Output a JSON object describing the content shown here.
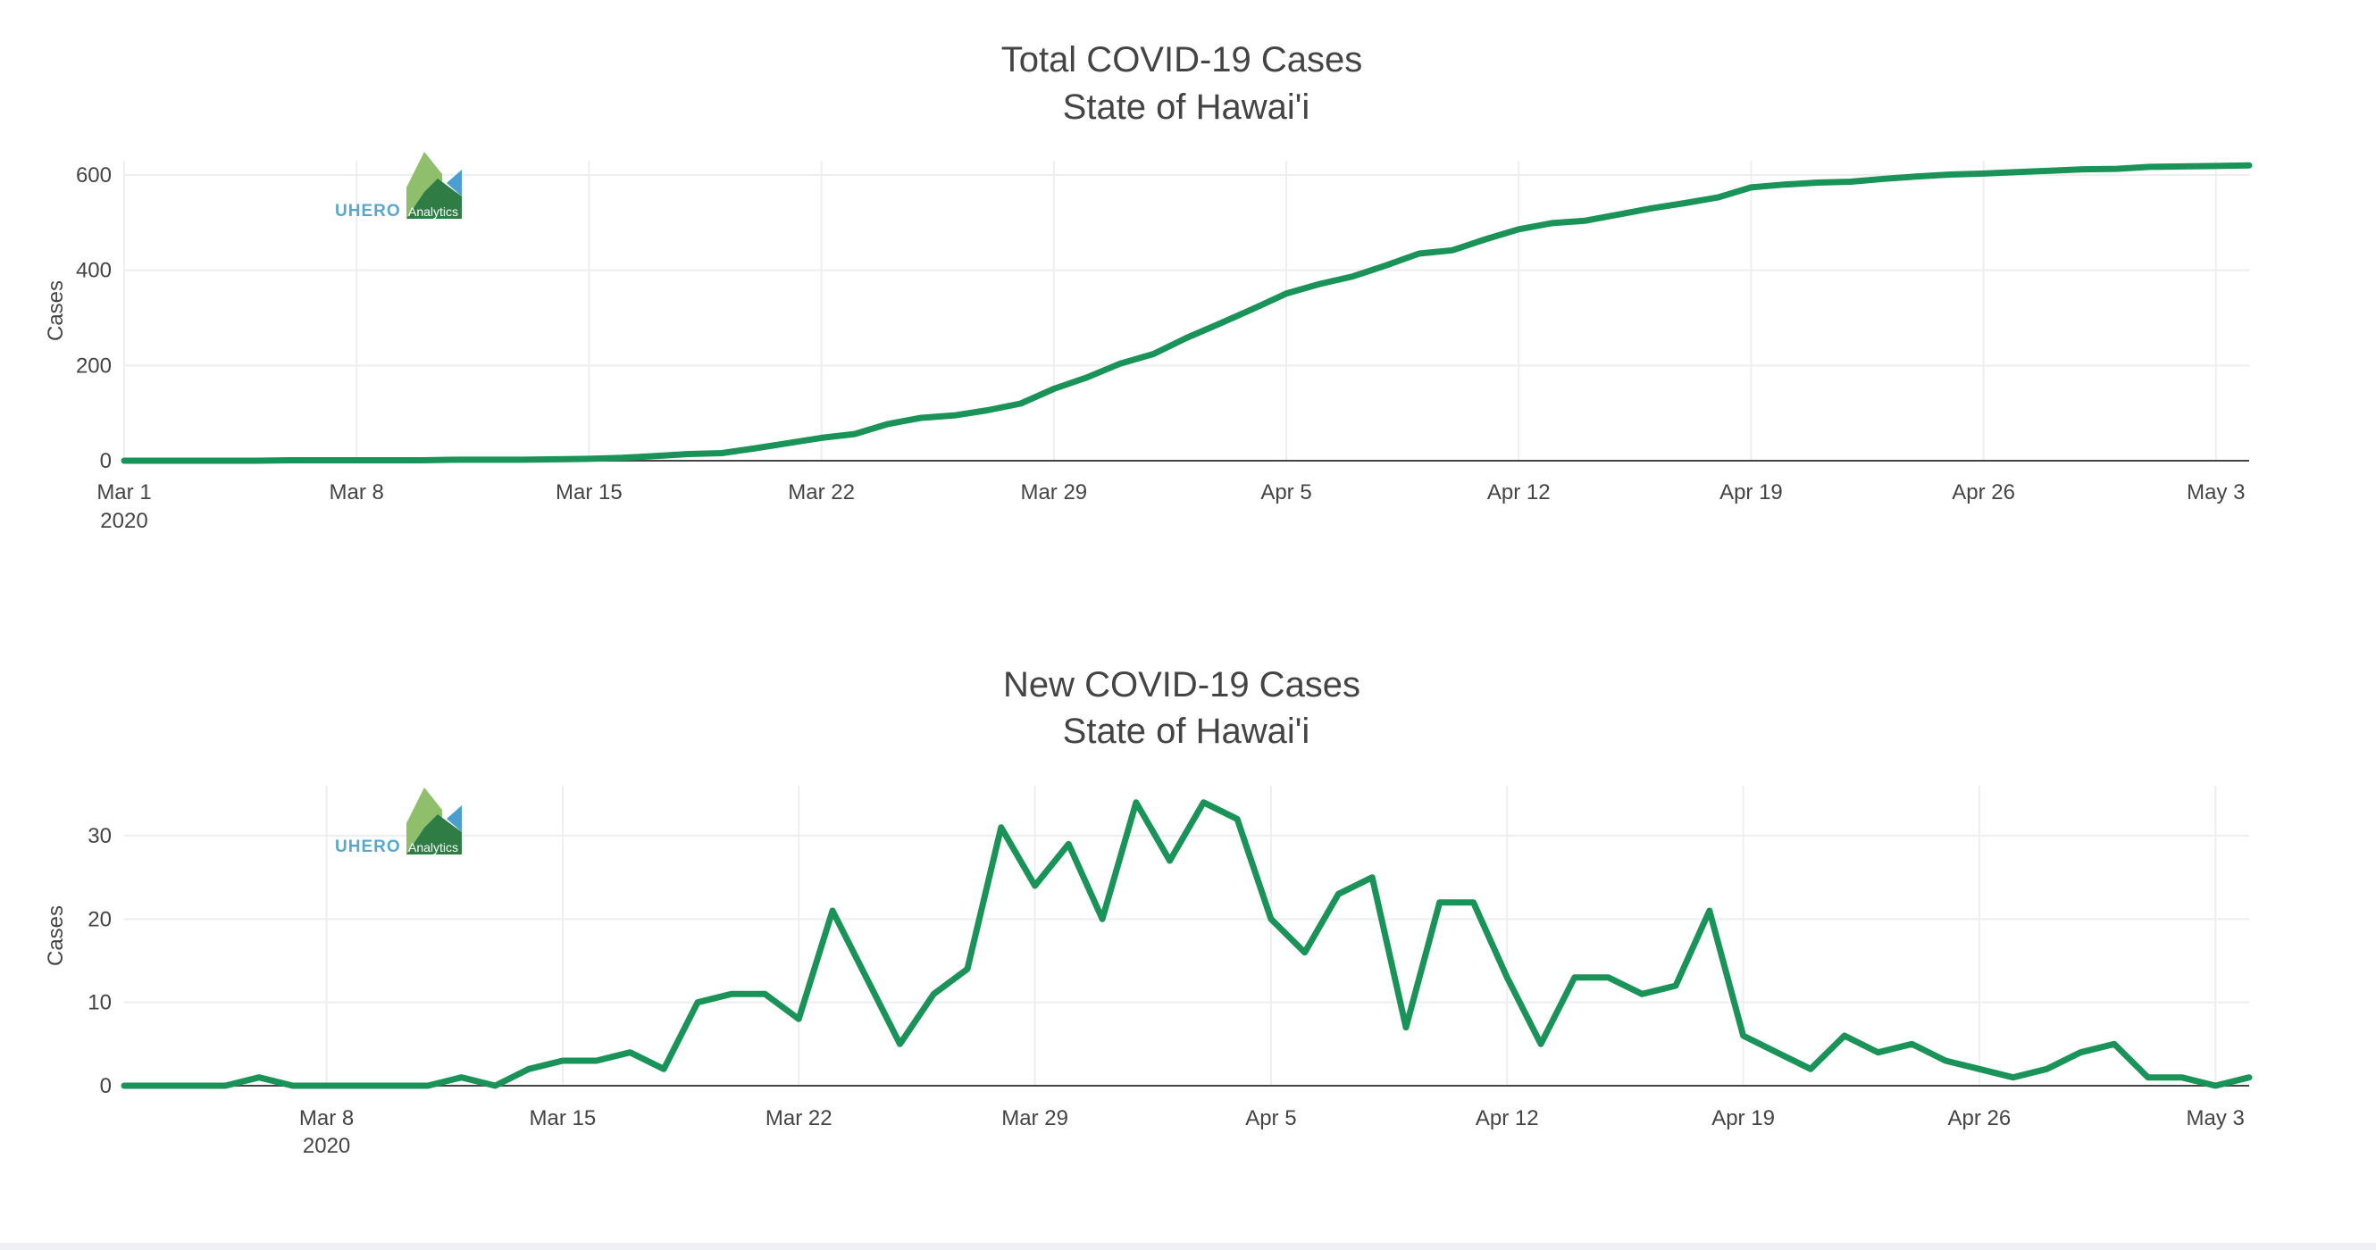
{
  "colors": {
    "line": "#1a9358",
    "grid": "#eeeeee",
    "axis": "#444444",
    "text": "#444444"
  },
  "logo": {
    "text": "UHERO",
    "sub": "Analytics",
    "icon": "uhero-mountain-logo"
  },
  "chart_data": [
    {
      "type": "line",
      "title": [
        "Total COVID-19 Cases",
        "State of Hawai'i"
      ],
      "ylabel": "Cases",
      "xlabel": "",
      "x_start": "2020-03-01",
      "x_end": "2020-05-04",
      "xlim": [
        "2020-03-01",
        "2020-05-04"
      ],
      "ylim": [
        0,
        630
      ],
      "yticks": [
        0,
        200,
        400,
        600
      ],
      "xticks": [
        {
          "date": "2020-03-01",
          "label": "Mar 1",
          "year": "2020"
        },
        {
          "date": "2020-03-08",
          "label": "Mar 8"
        },
        {
          "date": "2020-03-15",
          "label": "Mar 15"
        },
        {
          "date": "2020-03-22",
          "label": "Mar 22"
        },
        {
          "date": "2020-03-29",
          "label": "Mar 29"
        },
        {
          "date": "2020-04-05",
          "label": "Apr 5"
        },
        {
          "date": "2020-04-12",
          "label": "Apr 12"
        },
        {
          "date": "2020-04-19",
          "label": "Apr 19"
        },
        {
          "date": "2020-04-26",
          "label": "Apr 26"
        },
        {
          "date": "2020-05-03",
          "label": "May 3"
        }
      ],
      "grid": true,
      "values": [
        0,
        0,
        0,
        0,
        0,
        1,
        1,
        1,
        1,
        1,
        2,
        2,
        2,
        3,
        4,
        6,
        10,
        14,
        16,
        26,
        37,
        48,
        56,
        77,
        90,
        95,
        106,
        120,
        151,
        175,
        204,
        224,
        258,
        288,
        319,
        351,
        371,
        387,
        410,
        435,
        442,
        465,
        486,
        499,
        504,
        517,
        530,
        541,
        553,
        574,
        580,
        584,
        586,
        592,
        597,
        601,
        603,
        606,
        609,
        612,
        613,
        617,
        618,
        619,
        620
      ]
    },
    {
      "type": "line",
      "title": [
        "New COVID-19 Cases",
        "State of Hawai'i"
      ],
      "ylabel": "Cases",
      "xlabel": "",
      "x_start": "2020-03-02",
      "x_end": "2020-05-04",
      "xlim": [
        "2020-03-02",
        "2020-05-04"
      ],
      "ylim": [
        0,
        36
      ],
      "yticks": [
        0,
        10,
        20,
        30
      ],
      "xticks": [
        {
          "date": "2020-03-08",
          "label": "Mar 8",
          "year": "2020"
        },
        {
          "date": "2020-03-15",
          "label": "Mar 15"
        },
        {
          "date": "2020-03-22",
          "label": "Mar 22"
        },
        {
          "date": "2020-03-29",
          "label": "Mar 29"
        },
        {
          "date": "2020-04-05",
          "label": "Apr 5"
        },
        {
          "date": "2020-04-12",
          "label": "Apr 12"
        },
        {
          "date": "2020-04-19",
          "label": "Apr 19"
        },
        {
          "date": "2020-04-26",
          "label": "Apr 26"
        },
        {
          "date": "2020-05-03",
          "label": "May 3"
        }
      ],
      "grid": true,
      "values": [
        0,
        0,
        0,
        0,
        1,
        0,
        0,
        0,
        0,
        0,
        1,
        0,
        2,
        3,
        3,
        4,
        2,
        10,
        11,
        11,
        8,
        21,
        13,
        5,
        11,
        14,
        31,
        24,
        29,
        20,
        34,
        27,
        34,
        32,
        20,
        16,
        23,
        25,
        7,
        22,
        22,
        13,
        5,
        13,
        13,
        11,
        12,
        21,
        6,
        4,
        2,
        6,
        4,
        5,
        3,
        2,
        1,
        2,
        4,
        5,
        1,
        1,
        0,
        1
      ]
    }
  ]
}
